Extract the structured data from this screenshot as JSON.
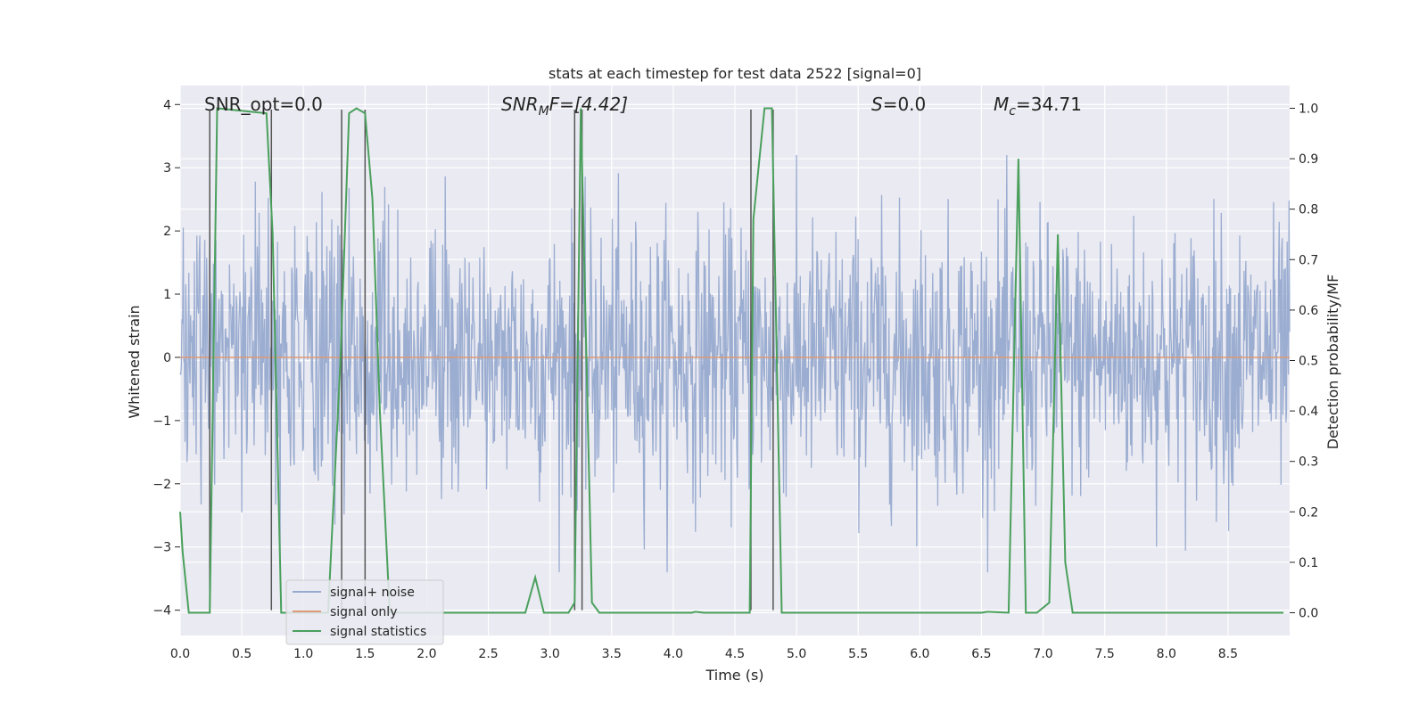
{
  "chart_data": {
    "type": "line",
    "title": "stats at each timestep for test data 2522 [signal=0]",
    "xlabel": "Time (s)",
    "ylabel": "Whitened strain",
    "y2label": "Detection probability/MF",
    "xlim": [
      0,
      9.0
    ],
    "ylim": [
      -4.4,
      4.3
    ],
    "y2lim": [
      -0.045,
      1.045
    ],
    "x_ticks": [
      "0.0",
      "0.5",
      "1.0",
      "1.5",
      "2.0",
      "2.5",
      "3.0",
      "3.5",
      "4.0",
      "4.5",
      "5.0",
      "5.5",
      "6.0",
      "6.5",
      "7.0",
      "7.5",
      "8.0",
      "8.5"
    ],
    "y_ticks": [
      "4",
      "3",
      "2",
      "1",
      "0",
      "−1",
      "−2",
      "−3",
      "−4"
    ],
    "y2_ticks": [
      "1.0",
      "0.9",
      "0.8",
      "0.7",
      "0.6",
      "0.5",
      "0.4",
      "0.3",
      "0.2",
      "0.1",
      "0.0"
    ],
    "grid": true,
    "legend_position": "lower-left",
    "annotations": {
      "snr_opt": "SNR_opt=0.0",
      "snr_mf_main": "SNR",
      "snr_mf_sub": "M",
      "snr_mf_rest": "F=[4.42]",
      "s_label": "S",
      "s_rest": "=0.0",
      "mc_label": "M",
      "mc_sub": "c",
      "mc_rest": "=34.71"
    },
    "vertical_markers_s": [
      0.24,
      0.74,
      1.31,
      1.5,
      3.2,
      3.26,
      4.63,
      4.81
    ],
    "series": [
      {
        "name": "signal+ noise",
        "color": "#97aacf",
        "axis": "left",
        "style": "noise",
        "amplitude_envelope": [
          3.2,
          -3.4
        ]
      },
      {
        "name": "signal only",
        "color": "#dd9a76",
        "axis": "left",
        "values_const": 0.0
      },
      {
        "name": "signal statistics",
        "color": "#4aa05c",
        "axis": "right",
        "x": [
          0.0,
          0.02,
          0.07,
          0.24,
          0.3,
          0.7,
          0.75,
          0.82,
          0.9,
          1.2,
          1.3,
          1.37,
          1.43,
          1.5,
          1.56,
          1.62,
          1.7,
          2.8,
          2.88,
          2.95,
          3.15,
          3.2,
          3.25,
          3.34,
          3.4,
          3.5,
          4.15,
          4.18,
          4.25,
          4.62,
          4.65,
          4.74,
          4.8,
          4.88,
          5.0,
          6.5,
          6.55,
          6.72,
          6.8,
          6.86,
          6.95,
          7.05,
          7.12,
          7.18,
          7.24,
          8.95
        ],
        "values": [
          0.2,
          0.12,
          0.0,
          0.0,
          1.0,
          0.99,
          0.75,
          0.0,
          0.0,
          0.0,
          0.5,
          0.99,
          1.0,
          0.99,
          0.82,
          0.4,
          0.0,
          0.0,
          0.07,
          0.0,
          0.0,
          0.02,
          1.0,
          0.02,
          0.0,
          0.0,
          0.0,
          0.002,
          0.0,
          0.0,
          0.78,
          1.0,
          1.0,
          0.0,
          0.0,
          0.0,
          0.002,
          0.0,
          0.9,
          0.0,
          0.0,
          0.02,
          0.75,
          0.1,
          0.0,
          0.0
        ]
      }
    ]
  }
}
